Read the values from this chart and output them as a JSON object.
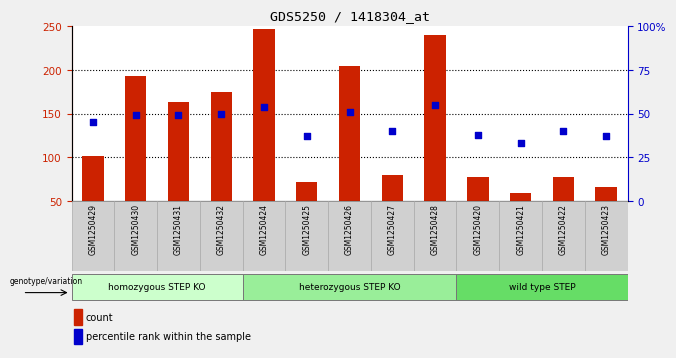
{
  "title": "GDS5250 / 1418304_at",
  "samples": [
    "GSM1250429",
    "GSM1250430",
    "GSM1250431",
    "GSM1250432",
    "GSM1250424",
    "GSM1250425",
    "GSM1250426",
    "GSM1250427",
    "GSM1250428",
    "GSM1250420",
    "GSM1250421",
    "GSM1250422",
    "GSM1250423"
  ],
  "bar_values": [
    102,
    193,
    163,
    175,
    247,
    72,
    204,
    80,
    240,
    77,
    59,
    78,
    66
  ],
  "dot_values_pct": [
    45,
    49,
    49,
    50,
    54,
    37,
    51,
    40,
    55,
    38,
    33,
    40,
    37
  ],
  "bar_color": "#cc2200",
  "dot_color": "#0000cc",
  "ylim_left": [
    50,
    250
  ],
  "ylim_right": [
    0,
    100
  ],
  "yticks_left": [
    50,
    100,
    150,
    200,
    250
  ],
  "yticks_right": [
    0,
    25,
    50,
    75,
    100
  ],
  "ytick_labels_right": [
    "0",
    "25",
    "50",
    "75",
    "100%"
  ],
  "groups": [
    {
      "label": "homozygous STEP KO",
      "start": 0,
      "end": 4,
      "color": "#ccffcc"
    },
    {
      "label": "heterozygous STEP KO",
      "start": 4,
      "end": 9,
      "color": "#99ee99"
    },
    {
      "label": "wild type STEP",
      "start": 9,
      "end": 13,
      "color": "#66dd66"
    }
  ],
  "group_label_prefix": "genotype/variation",
  "legend_count_label": "count",
  "legend_pct_label": "percentile rank within the sample",
  "fig_bg_color": "#f0f0f0",
  "plot_bg_color": "#ffffff",
  "xtick_bg_color": "#d0d0d0",
  "title_color": "#000000",
  "left_axis_color": "#cc2200",
  "right_axis_color": "#0000cc",
  "grid_yticks": [
    100,
    150,
    200
  ]
}
